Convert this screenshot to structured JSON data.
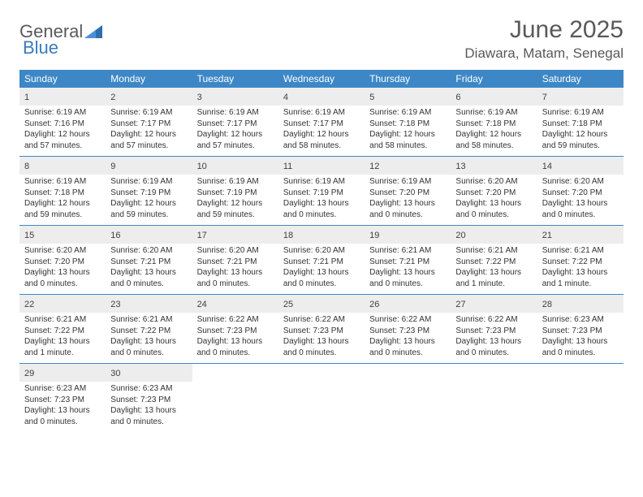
{
  "brand": {
    "part1": "General",
    "part2": "Blue"
  },
  "title": "June 2025",
  "location": "Diawara, Matam, Senegal",
  "colors": {
    "header_bg": "#3d87c7",
    "header_text": "#ffffff",
    "daynum_bg": "#ededed",
    "border": "#3d87c7",
    "title_color": "#595959",
    "body_text": "#333333"
  },
  "day_names": [
    "Sunday",
    "Monday",
    "Tuesday",
    "Wednesday",
    "Thursday",
    "Friday",
    "Saturday"
  ],
  "weeks": [
    [
      {
        "n": "1",
        "sr": "Sunrise: 6:19 AM",
        "ss": "Sunset: 7:16 PM",
        "d1": "Daylight: 12 hours",
        "d2": "and 57 minutes."
      },
      {
        "n": "2",
        "sr": "Sunrise: 6:19 AM",
        "ss": "Sunset: 7:17 PM",
        "d1": "Daylight: 12 hours",
        "d2": "and 57 minutes."
      },
      {
        "n": "3",
        "sr": "Sunrise: 6:19 AM",
        "ss": "Sunset: 7:17 PM",
        "d1": "Daylight: 12 hours",
        "d2": "and 57 minutes."
      },
      {
        "n": "4",
        "sr": "Sunrise: 6:19 AM",
        "ss": "Sunset: 7:17 PM",
        "d1": "Daylight: 12 hours",
        "d2": "and 58 minutes."
      },
      {
        "n": "5",
        "sr": "Sunrise: 6:19 AM",
        "ss": "Sunset: 7:18 PM",
        "d1": "Daylight: 12 hours",
        "d2": "and 58 minutes."
      },
      {
        "n": "6",
        "sr": "Sunrise: 6:19 AM",
        "ss": "Sunset: 7:18 PM",
        "d1": "Daylight: 12 hours",
        "d2": "and 58 minutes."
      },
      {
        "n": "7",
        "sr": "Sunrise: 6:19 AM",
        "ss": "Sunset: 7:18 PM",
        "d1": "Daylight: 12 hours",
        "d2": "and 59 minutes."
      }
    ],
    [
      {
        "n": "8",
        "sr": "Sunrise: 6:19 AM",
        "ss": "Sunset: 7:18 PM",
        "d1": "Daylight: 12 hours",
        "d2": "and 59 minutes."
      },
      {
        "n": "9",
        "sr": "Sunrise: 6:19 AM",
        "ss": "Sunset: 7:19 PM",
        "d1": "Daylight: 12 hours",
        "d2": "and 59 minutes."
      },
      {
        "n": "10",
        "sr": "Sunrise: 6:19 AM",
        "ss": "Sunset: 7:19 PM",
        "d1": "Daylight: 12 hours",
        "d2": "and 59 minutes."
      },
      {
        "n": "11",
        "sr": "Sunrise: 6:19 AM",
        "ss": "Sunset: 7:19 PM",
        "d1": "Daylight: 13 hours",
        "d2": "and 0 minutes."
      },
      {
        "n": "12",
        "sr": "Sunrise: 6:19 AM",
        "ss": "Sunset: 7:20 PM",
        "d1": "Daylight: 13 hours",
        "d2": "and 0 minutes."
      },
      {
        "n": "13",
        "sr": "Sunrise: 6:20 AM",
        "ss": "Sunset: 7:20 PM",
        "d1": "Daylight: 13 hours",
        "d2": "and 0 minutes."
      },
      {
        "n": "14",
        "sr": "Sunrise: 6:20 AM",
        "ss": "Sunset: 7:20 PM",
        "d1": "Daylight: 13 hours",
        "d2": "and 0 minutes."
      }
    ],
    [
      {
        "n": "15",
        "sr": "Sunrise: 6:20 AM",
        "ss": "Sunset: 7:20 PM",
        "d1": "Daylight: 13 hours",
        "d2": "and 0 minutes."
      },
      {
        "n": "16",
        "sr": "Sunrise: 6:20 AM",
        "ss": "Sunset: 7:21 PM",
        "d1": "Daylight: 13 hours",
        "d2": "and 0 minutes."
      },
      {
        "n": "17",
        "sr": "Sunrise: 6:20 AM",
        "ss": "Sunset: 7:21 PM",
        "d1": "Daylight: 13 hours",
        "d2": "and 0 minutes."
      },
      {
        "n": "18",
        "sr": "Sunrise: 6:20 AM",
        "ss": "Sunset: 7:21 PM",
        "d1": "Daylight: 13 hours",
        "d2": "and 0 minutes."
      },
      {
        "n": "19",
        "sr": "Sunrise: 6:21 AM",
        "ss": "Sunset: 7:21 PM",
        "d1": "Daylight: 13 hours",
        "d2": "and 0 minutes."
      },
      {
        "n": "20",
        "sr": "Sunrise: 6:21 AM",
        "ss": "Sunset: 7:22 PM",
        "d1": "Daylight: 13 hours",
        "d2": "and 1 minute."
      },
      {
        "n": "21",
        "sr": "Sunrise: 6:21 AM",
        "ss": "Sunset: 7:22 PM",
        "d1": "Daylight: 13 hours",
        "d2": "and 1 minute."
      }
    ],
    [
      {
        "n": "22",
        "sr": "Sunrise: 6:21 AM",
        "ss": "Sunset: 7:22 PM",
        "d1": "Daylight: 13 hours",
        "d2": "and 1 minute."
      },
      {
        "n": "23",
        "sr": "Sunrise: 6:21 AM",
        "ss": "Sunset: 7:22 PM",
        "d1": "Daylight: 13 hours",
        "d2": "and 0 minutes."
      },
      {
        "n": "24",
        "sr": "Sunrise: 6:22 AM",
        "ss": "Sunset: 7:23 PM",
        "d1": "Daylight: 13 hours",
        "d2": "and 0 minutes."
      },
      {
        "n": "25",
        "sr": "Sunrise: 6:22 AM",
        "ss": "Sunset: 7:23 PM",
        "d1": "Daylight: 13 hours",
        "d2": "and 0 minutes."
      },
      {
        "n": "26",
        "sr": "Sunrise: 6:22 AM",
        "ss": "Sunset: 7:23 PM",
        "d1": "Daylight: 13 hours",
        "d2": "and 0 minutes."
      },
      {
        "n": "27",
        "sr": "Sunrise: 6:22 AM",
        "ss": "Sunset: 7:23 PM",
        "d1": "Daylight: 13 hours",
        "d2": "and 0 minutes."
      },
      {
        "n": "28",
        "sr": "Sunrise: 6:23 AM",
        "ss": "Sunset: 7:23 PM",
        "d1": "Daylight: 13 hours",
        "d2": "and 0 minutes."
      }
    ],
    [
      {
        "n": "29",
        "sr": "Sunrise: 6:23 AM",
        "ss": "Sunset: 7:23 PM",
        "d1": "Daylight: 13 hours",
        "d2": "and 0 minutes."
      },
      {
        "n": "30",
        "sr": "Sunrise: 6:23 AM",
        "ss": "Sunset: 7:23 PM",
        "d1": "Daylight: 13 hours",
        "d2": "and 0 minutes."
      },
      null,
      null,
      null,
      null,
      null
    ]
  ]
}
